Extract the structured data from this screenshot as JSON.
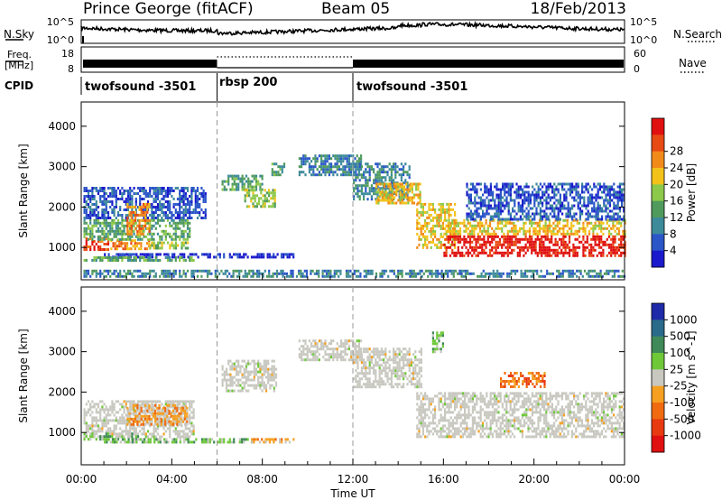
{
  "header": {
    "station": "Prince George (fitACF)",
    "beam": "Beam 05",
    "date": "18/Feb/2013"
  },
  "noise_panel": {
    "left_label": "N.Sky",
    "right_label": "N.Search",
    "left_ticks": [
      "10^5",
      "10^0"
    ],
    "right_ticks": [
      "10^5",
      "10^0"
    ]
  },
  "freq_panel": {
    "left_label_1": "Freq.",
    "left_label_2": "[MHz]",
    "right_label": "Nave",
    "left_ticks": [
      "18",
      "8"
    ],
    "right_ticks": [
      "60",
      "0"
    ]
  },
  "cpid": {
    "label": "CPID",
    "segments": [
      {
        "name": "twofsound -3501",
        "start": 0,
        "end": 6
      },
      {
        "name": "rbsp 200",
        "start": 6,
        "end": 12
      },
      {
        "name": "twofsound -3501",
        "start": 12,
        "end": 24
      }
    ]
  },
  "colors": {
    "power": [
      "#1a1acc",
      "#2b56c8",
      "#3d8a9a",
      "#4f9a5c",
      "#8cc84a",
      "#f2c21a",
      "#f28a1a",
      "#e84a14",
      "#e01010"
    ],
    "velocity": [
      "#1e2aa8",
      "#2a6a8a",
      "#3f8a58",
      "#6ec838",
      "#c8c8c0",
      "#f5a020",
      "#f06a10",
      "#e83a10",
      "#e01010"
    ],
    "ground_scatter": "#c8c8c0"
  },
  "chart_data": [
    {
      "type": "heatmap",
      "name": "power",
      "ylabel": "Slant Range [km]",
      "colorbar_label": "Power [dB]",
      "colorbar_ticks": [
        "4",
        "8",
        "12",
        "16",
        "20",
        "24",
        "28"
      ],
      "x_range": [
        0,
        24
      ],
      "y_range": [
        200,
        4600
      ],
      "y_ticks": [
        "1000",
        "2000",
        "3000",
        "4000"
      ],
      "bands": [
        {
          "t0": 0.1,
          "t1": 1.2,
          "r0": 950,
          "r1": 1250,
          "level": 7
        },
        {
          "t0": 1.2,
          "t1": 3.0,
          "r0": 950,
          "r1": 1200,
          "level": 6
        },
        {
          "t0": 3.0,
          "t1": 4.7,
          "r0": 950,
          "r1": 1150,
          "level": 4
        },
        {
          "t0": 0.1,
          "t1": 4.8,
          "r0": 1200,
          "r1": 1700,
          "level": 3
        },
        {
          "t0": 0.1,
          "t1": 5.5,
          "r0": 1700,
          "r1": 2500,
          "level": 1
        },
        {
          "t0": 2.0,
          "t1": 3.0,
          "r0": 1300,
          "r1": 2100,
          "level": 6
        },
        {
          "t0": 1.0,
          "t1": 9.5,
          "r0": 780,
          "r1": 860,
          "level": 0
        },
        {
          "t0": 0.1,
          "t1": 5.0,
          "r0": 650,
          "r1": 780,
          "level": 3
        },
        {
          "t0": 6.2,
          "t1": 8.0,
          "r0": 2450,
          "r1": 2800,
          "level": 3
        },
        {
          "t0": 7.2,
          "t1": 8.6,
          "r0": 2000,
          "r1": 2450,
          "level": 4
        },
        {
          "t0": 8.4,
          "t1": 9.0,
          "r0": 2800,
          "r1": 3100,
          "level": 3
        },
        {
          "t0": 9.6,
          "t1": 12.4,
          "r0": 2800,
          "r1": 3300,
          "level": 2
        },
        {
          "t0": 12.0,
          "t1": 14.5,
          "r0": 2200,
          "r1": 3100,
          "level": 2
        },
        {
          "t0": 13.0,
          "t1": 15.0,
          "r0": 2100,
          "r1": 2600,
          "level": 5
        },
        {
          "t0": 14.8,
          "t1": 16.5,
          "r0": 1000,
          "r1": 2100,
          "level": 5
        },
        {
          "t0": 16.0,
          "t1": 24.0,
          "r0": 1300,
          "r1": 1700,
          "level": 5
        },
        {
          "t0": 16.0,
          "t1": 24.0,
          "r0": 800,
          "r1": 1300,
          "level": 8
        },
        {
          "t0": 17.0,
          "t1": 24.0,
          "r0": 1700,
          "r1": 2600,
          "level": 1
        },
        {
          "t0": 0.1,
          "t1": 24.0,
          "r0": 250,
          "r1": 450,
          "level": 2
        }
      ]
    },
    {
      "type": "heatmap",
      "name": "velocity",
      "ylabel": "Slant Range [km]",
      "colorbar_label": "Velocity [m s^-1]",
      "colorbar_ticks": [
        "1000",
        "500",
        "100",
        "25",
        "-25",
        "-100",
        "-500",
        "-1000"
      ],
      "x_range": [
        0,
        24
      ],
      "x_ticks": [
        "00:00",
        "04:00",
        "08:00",
        "12:00",
        "16:00",
        "20:00",
        "00:00"
      ],
      "xlabel": "Time UT",
      "y_range": [
        200,
        4600
      ],
      "y_ticks": [
        "1000",
        "2000",
        "3000",
        "4000"
      ],
      "bands": [
        {
          "t0": 0.1,
          "t1": 5.0,
          "r0": 900,
          "r1": 1800,
          "level": 4
        },
        {
          "t0": 2.0,
          "t1": 4.7,
          "r0": 1200,
          "r1": 1700,
          "level": 5
        },
        {
          "t0": 0.1,
          "t1": 2.5,
          "r0": 850,
          "r1": 1000,
          "level": 3
        },
        {
          "t0": 1.0,
          "t1": 7.5,
          "r0": 780,
          "r1": 860,
          "level": 3
        },
        {
          "t0": 7.5,
          "t1": 9.5,
          "r0": 780,
          "r1": 860,
          "level": 5
        },
        {
          "t0": 6.2,
          "t1": 8.6,
          "r0": 2000,
          "r1": 2800,
          "level": 4
        },
        {
          "t0": 9.6,
          "t1": 12.4,
          "r0": 2800,
          "r1": 3300,
          "level": 4
        },
        {
          "t0": 12.0,
          "t1": 15.0,
          "r0": 2100,
          "r1": 3100,
          "level": 4
        },
        {
          "t0": 14.8,
          "t1": 24.0,
          "r0": 900,
          "r1": 2000,
          "level": 4
        },
        {
          "t0": 18.5,
          "t1": 20.5,
          "r0": 2100,
          "r1": 2500,
          "level": 6
        },
        {
          "t0": 15.5,
          "t1": 16.0,
          "r0": 3000,
          "r1": 3500,
          "level": 3
        }
      ]
    }
  ]
}
